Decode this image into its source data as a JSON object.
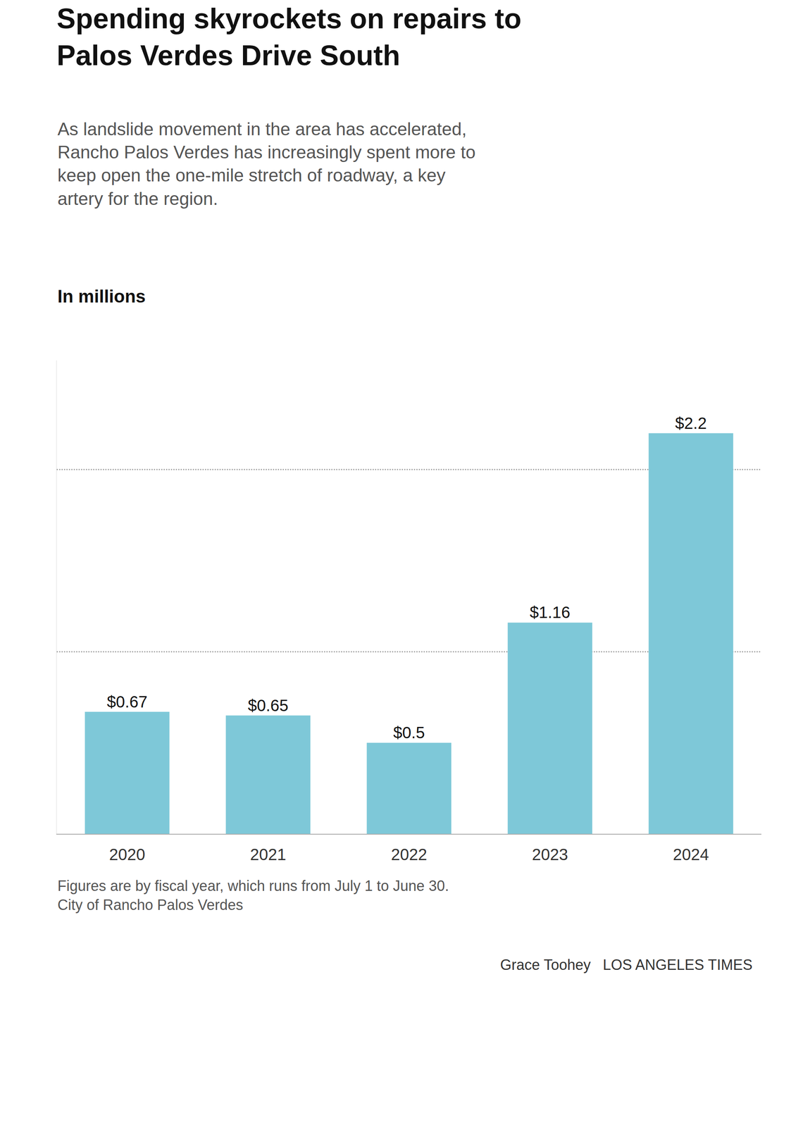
{
  "chart_data": {
    "type": "bar",
    "title": "Spending skyrockets on repairs to\nPalos Verdes Drive South",
    "subtitle": "As landslide movement in the area has accelerated,\nRancho Palos Verdes has increasingly spent more to\nkeep open the one-mile stretch of roadway, a key\nartery for the region.",
    "y_label": "In millions",
    "categories": [
      "2020",
      "2021",
      "2022",
      "2023",
      "2024"
    ],
    "values": [
      0.67,
      0.65,
      0.5,
      1.16,
      2.2
    ],
    "value_labels": [
      "$0.67",
      "$0.65",
      "$0.5",
      "$1.16",
      "$2.2"
    ],
    "data_labels": true,
    "color": "#7ec8d8",
    "ylim": [
      0,
      2.6
    ],
    "yticks": [
      1.0,
      2.0
    ],
    "grid": true,
    "tick_labels": "x",
    "annotations": [
      "Figures are by fiscal year, which runs from July 1 to June 30.",
      "City of Rancho Palos Verdes"
    ],
    "byline": "Grace Toohey   LOS ANGELES TIMES"
  }
}
